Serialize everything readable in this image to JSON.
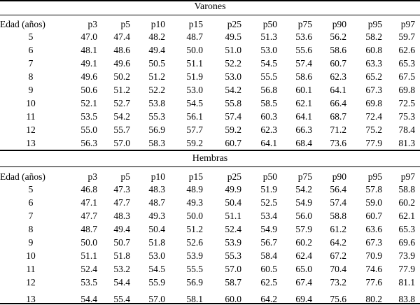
{
  "tables": [
    {
      "title": "Varones",
      "columns": [
        "Edad (años)",
        "p3",
        "p5",
        "p10",
        "p15",
        "p25",
        "p50",
        "p75",
        "p90",
        "p95",
        "p97"
      ],
      "rows": [
        [
          "5",
          "47.0",
          "47.4",
          "48.2",
          "48.7",
          "49.5",
          "51.3",
          "53.6",
          "56.2",
          "58.2",
          "59.7"
        ],
        [
          "6",
          "48.1",
          "48.6",
          "49.4",
          "50.0",
          "51.0",
          "53.0",
          "55.6",
          "58.6",
          "60.8",
          "62.6"
        ],
        [
          "7",
          "49.1",
          "49.6",
          "50.5",
          "51.1",
          "52.2",
          "54.5",
          "57.4",
          "60.7",
          "63.3",
          "65.3"
        ],
        [
          "8",
          "49.6",
          "50.2",
          "51.2",
          "51.9",
          "53.0",
          "55.5",
          "58.6",
          "62.3",
          "65.2",
          "67.5"
        ],
        [
          "9",
          "50.6",
          "51.2",
          "52.2",
          "53.0",
          "54.2",
          "56.8",
          "60.1",
          "64.1",
          "67.3",
          "69.8"
        ],
        [
          "10",
          "52.1",
          "52.7",
          "53.8",
          "54.5",
          "55.8",
          "58.5",
          "62.1",
          "66.4",
          "69.8",
          "72.5"
        ],
        [
          "11",
          "53.5",
          "54.2",
          "55.3",
          "56.1",
          "57.4",
          "60.3",
          "64.1",
          "68.7",
          "72.4",
          "75.3"
        ],
        [
          "12",
          "55.0",
          "55.7",
          "56.9",
          "57.7",
          "59.2",
          "62.3",
          "66.3",
          "71.2",
          "75.2",
          "78.4"
        ],
        [
          "13",
          "56.3",
          "57.0",
          "58.3",
          "59.2",
          "60.7",
          "64.1",
          "68.4",
          "73.6",
          "77.9",
          "81.3"
        ]
      ]
    },
    {
      "title": "Hembras",
      "columns": [
        "Edad (años)",
        "p3",
        "p5",
        "p10",
        "p15",
        "p25",
        "p50",
        "p75",
        "p90",
        "p95",
        "p97"
      ],
      "rows": [
        [
          "5",
          "46.8",
          "47.3",
          "48.3",
          "48.9",
          "49.9",
          "51.9",
          "54.2",
          "56.4",
          "57.8",
          "58.8"
        ],
        [
          "6",
          "47.1",
          "47.7",
          "48.7",
          "49.3",
          "50.4",
          "52.5",
          "54.9",
          "57.4",
          "59.0",
          "60.2"
        ],
        [
          "7",
          "47.7",
          "48.3",
          "49.3",
          "50.0",
          "51.1",
          "53.4",
          "56.0",
          "58.8",
          "60.7",
          "62.1"
        ],
        [
          "8",
          "48.7",
          "49.4",
          "50.4",
          "51.2",
          "52.4",
          "54.9",
          "57.9",
          "61.2",
          "63.6",
          "65.3"
        ],
        [
          "9",
          "50.0",
          "50.7",
          "51.8",
          "52.6",
          "53.9",
          "56.7",
          "60.2",
          "64.2",
          "67.3",
          "69.6"
        ],
        [
          "10",
          "51.1",
          "51.8",
          "53.0",
          "53.9",
          "55.3",
          "58.4",
          "62.4",
          "67.2",
          "70.9",
          "73.9"
        ],
        [
          "11",
          "52.4",
          "53.2",
          "54.5",
          "55.5",
          "57.0",
          "60.5",
          "65.0",
          "70.4",
          "74.6",
          "77.9"
        ],
        [
          "12",
          "53.5",
          "54.4",
          "55.9",
          "56.9",
          "58.7",
          "62.5",
          "67.4",
          "73.2",
          "77.6",
          "81.1"
        ],
        [
          "13",
          "54.4",
          "55.4",
          "57.0",
          "58.1",
          "60.0",
          "64.2",
          "69.4",
          "75.6",
          "80.2",
          "83.8"
        ]
      ]
    }
  ]
}
